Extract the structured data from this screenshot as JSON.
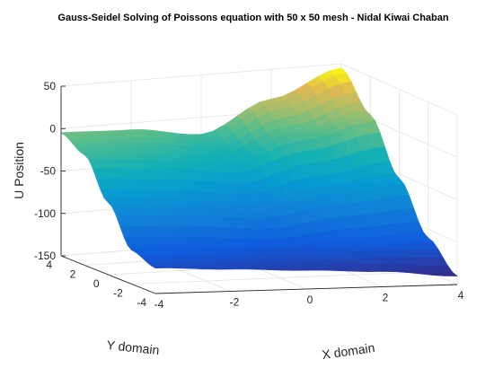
{
  "chart_data": {
    "type": "surface",
    "title": "Gauss-Seidel Solving of Poissons equation with 50 x 50 mesh - Nidal Kiwai Chaban",
    "xlabel": "X domain",
    "ylabel": "Y domain",
    "zlabel": "U Position",
    "xlim": [
      -4,
      4
    ],
    "ylim": [
      -4,
      4
    ],
    "zlim": [
      -150,
      50
    ],
    "xticks": [
      "-4",
      "-2",
      "0",
      "2",
      "4"
    ],
    "yticks": [
      "-4",
      "-2",
      "0",
      "2",
      "4"
    ],
    "zticks": [
      "50",
      "0",
      "-50",
      "-100",
      "-150"
    ],
    "mesh": "50 x 50",
    "colormap": "parula",
    "grid": true,
    "corners": [
      {
        "x": -4,
        "y": 4,
        "z": -5
      },
      {
        "x": 4,
        "y": 4,
        "z": 45
      },
      {
        "x": 4,
        "y": -4,
        "z": -140
      },
      {
        "x": -4,
        "y": -4,
        "z": -120
      }
    ],
    "edge_profiles": {
      "y_eq_4": {
        "x": [
          -4,
          -2,
          0,
          2,
          4
        ],
        "z": [
          -5,
          -8,
          -20,
          15,
          45
        ]
      },
      "x_eq_4": {
        "y": [
          4,
          2,
          0,
          -2,
          -4
        ],
        "z": [
          45,
          5,
          -55,
          -110,
          -140
        ]
      },
      "y_eq_neg4": {
        "x": [
          -4,
          -2,
          0,
          2,
          4
        ],
        "z": [
          -120,
          -124,
          -128,
          -132,
          -140
        ]
      },
      "x_eq_neg4": {
        "y": [
          4,
          2,
          0,
          -2,
          -4
        ],
        "z": [
          -5,
          -20,
          -65,
          -110,
          -120
        ]
      }
    }
  }
}
